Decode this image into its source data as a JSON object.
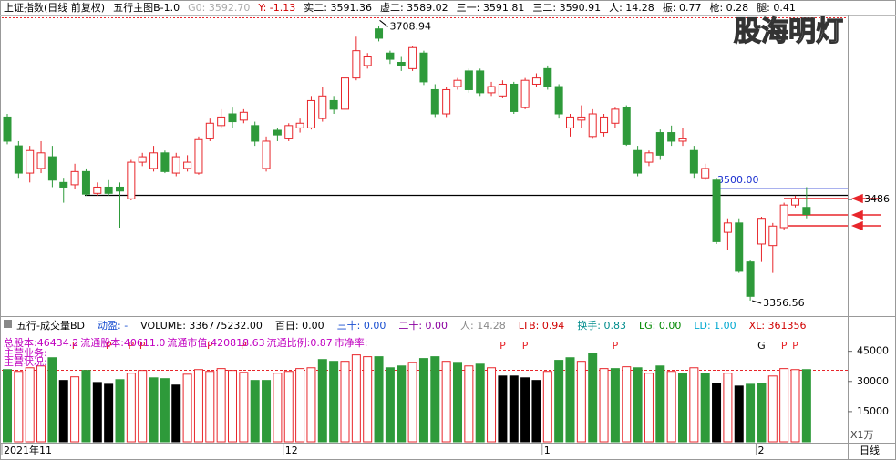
{
  "header": {
    "items": [
      {
        "text": "上证指数(日线 前复权)",
        "color": "#000000"
      },
      {
        "text": "五行主图B-1.0",
        "color": "#000000"
      },
      {
        "text": "G0: 3592.70",
        "color": "#aaaaaa"
      },
      {
        "text": "Y: -1.13",
        "color": "#d00000"
      },
      {
        "text": "实二: 3591.36",
        "color": "#000000"
      },
      {
        "text": "虚二: 3589.02",
        "color": "#000000"
      },
      {
        "text": "三一: 3591.81",
        "color": "#000000"
      },
      {
        "text": "三二: 3590.91",
        "color": "#000000"
      },
      {
        "text": "人: 14.28",
        "color": "#000000"
      },
      {
        "text": "振: 0.77",
        "color": "#000000"
      },
      {
        "text": "枪: 0.28",
        "color": "#000000"
      },
      {
        "text": "腿: 0.41",
        "color": "#000000"
      }
    ],
    "watermark": "股海明灯"
  },
  "volume_header": {
    "items": [
      {
        "text": "五行-成交量BD",
        "color": "#000000"
      },
      {
        "text": "动盈: -",
        "color": "#1a4fd0"
      },
      {
        "text": "VOLUME: 336775232.00",
        "color": "#000000"
      },
      {
        "text": "百日: 0.00",
        "color": "#000000"
      },
      {
        "text": "三十: 0.00",
        "color": "#1a4fd0"
      },
      {
        "text": "二十: 0.00",
        "color": "#8b00a0"
      },
      {
        "text": "人: 14.28",
        "color": "#888888"
      },
      {
        "text": "LTB: 0.94",
        "color": "#d00000"
      },
      {
        "text": "换手: 0.83",
        "color": "#008c8c"
      },
      {
        "text": "LG: 0.00",
        "color": "#008800"
      },
      {
        "text": "LD: 1.00",
        "color": "#00a8d0"
      },
      {
        "text": "XL: 361356",
        "color": "#d00000"
      }
    ],
    "notes": [
      "总股本:46434.2",
      "流通股本:40611.0",
      "流通市值:420818.63",
      "流通比例:0.87",
      "市净率:"
    ],
    "lines": [
      "主营业务:",
      "主营状况:"
    ]
  },
  "chart_data": [
    {
      "type": "candlestick",
      "up_color": "#e8262b",
      "down_color": "#2e9a3a",
      "ylim": [
        3339,
        3721
      ],
      "yticks": [
        3486
      ],
      "hline": {
        "value": 3500,
        "label": "3500.00",
        "color": "#1a2fd0"
      },
      "high_label": 3708.94,
      "low_label": 3356.56,
      "open": [
        3592,
        3555,
        3520,
        3526,
        3541,
        3508,
        3505,
        3522,
        3494,
        3502,
        3502,
        3487,
        3534,
        3526,
        3546,
        3520,
        3526,
        3520,
        3564,
        3581,
        3596,
        3588,
        3581,
        3526,
        3575,
        3564,
        3578,
        3578,
        3590,
        3613,
        3602,
        3642,
        3658,
        3705,
        3674,
        3662,
        3654,
        3674,
        3627,
        3596,
        3631,
        3651,
        3651,
        3623,
        3619,
        3634,
        3604,
        3634,
        3654,
        3631,
        3578,
        3588,
        3567,
        3572,
        3584,
        3604,
        3549,
        3534,
        3572,
        3572,
        3561,
        3549,
        3514,
        3511,
        3444,
        3456,
        3406,
        3429,
        3427,
        3450,
        3479,
        3476
      ],
      "high": [
        3596,
        3561,
        3555,
        3561,
        3555,
        3514,
        3532,
        3526,
        3508,
        3511,
        3508,
        3537,
        3546,
        3555,
        3549,
        3546,
        3543,
        3567,
        3590,
        3602,
        3604,
        3602,
        3586,
        3567,
        3578,
        3584,
        3590,
        3619,
        3631,
        3619,
        3648,
        3695,
        3674,
        3708.94,
        3677,
        3669,
        3683,
        3677,
        3634,
        3631,
        3642,
        3654,
        3654,
        3637,
        3639,
        3637,
        3642,
        3648,
        3658,
        3634,
        3596,
        3607,
        3602,
        3596,
        3604,
        3607,
        3555,
        3549,
        3576,
        3581,
        3578,
        3555,
        3532,
        3514,
        3462,
        3462,
        3409,
        3464,
        3456,
        3482,
        3491,
        3502
      ],
      "low": [
        3557,
        3514,
        3508,
        3520,
        3502,
        3482,
        3499,
        3491,
        3491,
        3491,
        3450,
        3485,
        3529,
        3522,
        3520,
        3516,
        3522,
        3518,
        3561,
        3578,
        3578,
        3584,
        3555,
        3522,
        3561,
        3561,
        3572,
        3576,
        3586,
        3596,
        3599,
        3639,
        3654,
        3689,
        3660,
        3651,
        3651,
        3633,
        3592,
        3592,
        3627,
        3623,
        3619,
        3619,
        3616,
        3596,
        3602,
        3631,
        3627,
        3590,
        3567,
        3578,
        3564,
        3567,
        3578,
        3555,
        3516,
        3529,
        3537,
        3555,
        3555,
        3514,
        3511,
        3429,
        3421,
        3392,
        3356.56,
        3406,
        3392,
        3447,
        3476,
        3462
      ],
      "close": [
        3561,
        3520,
        3549,
        3546,
        3511,
        3502,
        3522,
        3493,
        3502,
        3494,
        3497,
        3534,
        3541,
        3546,
        3522,
        3541,
        3534,
        3563,
        3584,
        3592,
        3586,
        3598,
        3561,
        3561,
        3569,
        3581,
        3584,
        3613,
        3619,
        3602,
        3642,
        3677,
        3669,
        3693,
        3666,
        3658,
        3681,
        3637,
        3596,
        3627,
        3639,
        3627,
        3623,
        3631,
        3634,
        3599,
        3639,
        3642,
        3631,
        3596,
        3592,
        3592,
        3596,
        3592,
        3602,
        3557,
        3520,
        3546,
        3543,
        3561,
        3564,
        3520,
        3526,
        3432,
        3456,
        3394,
        3362,
        3462,
        3452,
        3479,
        3487,
        3467
      ]
    },
    {
      "type": "bar",
      "ylim": [
        0,
        53000
      ],
      "yticks": [
        15000,
        30000,
        45000
      ],
      "unit_label": "X1万",
      "period_label": "日线",
      "hollow_color": "#e8262b",
      "categories": [
        "2021年11",
        null,
        null,
        null,
        null,
        null,
        null,
        null,
        null,
        null,
        null,
        null,
        null,
        null,
        null,
        null,
        null,
        null,
        null,
        null,
        null,
        null,
        null,
        null,
        null,
        "12",
        null,
        null,
        null,
        null,
        null,
        null,
        null,
        null,
        null,
        null,
        null,
        null,
        null,
        null,
        null,
        null,
        null,
        null,
        null,
        null,
        null,
        null,
        "1",
        null,
        null,
        null,
        null,
        null,
        null,
        null,
        null,
        null,
        null,
        null,
        null,
        null,
        null,
        null,
        null,
        null,
        null,
        "2",
        null,
        null,
        null,
        null
      ],
      "signals": [
        null,
        null,
        null,
        null,
        null,
        null,
        "P",
        null,
        null,
        "P",
        null,
        "P",
        "P",
        null,
        null,
        null,
        null,
        null,
        "P",
        null,
        null,
        "P",
        null,
        null,
        null,
        null,
        null,
        null,
        null,
        null,
        null,
        null,
        null,
        null,
        null,
        null,
        null,
        null,
        null,
        null,
        null,
        null,
        null,
        null,
        "P",
        null,
        "P",
        null,
        null,
        null,
        null,
        null,
        null,
        null,
        "P",
        null,
        null,
        null,
        null,
        null,
        null,
        null,
        null,
        null,
        null,
        null,
        null,
        "G",
        null,
        "P",
        "P",
        null
      ],
      "values": [
        35900,
        35000,
        36800,
        37700,
        41800,
        30500,
        32300,
        35500,
        29500,
        28600,
        30900,
        34100,
        35500,
        31800,
        31400,
        28200,
        33600,
        35900,
        35000,
        36400,
        35500,
        34500,
        30500,
        30500,
        34100,
        35000,
        36400,
        36800,
        40900,
        40000,
        40000,
        43200,
        42300,
        42300,
        36800,
        37700,
        39500,
        41400,
        42300,
        40000,
        39500,
        37700,
        38600,
        36800,
        32700,
        32700,
        31800,
        30500,
        35000,
        40500,
        41800,
        40000,
        44100,
        36400,
        36400,
        37300,
        36800,
        34100,
        37700,
        35000,
        34100,
        36800,
        34100,
        29100,
        34100,
        27700,
        28600,
        29100,
        32700,
        36400,
        35900,
        35900
      ],
      "colors": [
        "#2e9a3a",
        "#e8262b",
        "#e8262b",
        "#e8262b",
        "#2e9a3a",
        "#000000",
        "#e8262b",
        "#2e9a3a",
        "#000000",
        "#000000",
        "#2e9a3a",
        "#e8262b",
        "#e8262b",
        "#2e9a3a",
        "#2e9a3a",
        "#000000",
        "#e8262b",
        "#e8262b",
        "#e8262b",
        "#e8262b",
        "#e8262b",
        "#e8262b",
        "#2e9a3a",
        "#2e9a3a",
        "#e8262b",
        "#e8262b",
        "#e8262b",
        "#e8262b",
        "#2e9a3a",
        "#2e9a3a",
        "#e8262b",
        "#e8262b",
        "#e8262b",
        "#2e9a3a",
        "#2e9a3a",
        "#2e9a3a",
        "#e8262b",
        "#2e9a3a",
        "#2e9a3a",
        "#e8262b",
        "#2e9a3a",
        "#e8262b",
        "#2e9a3a",
        "#e8262b",
        "#000000",
        "#000000",
        "#000000",
        "#000000",
        "#e8262b",
        "#2e9a3a",
        "#2e9a3a",
        "#e8262b",
        "#2e9a3a",
        "#e8262b",
        "#2e9a3a",
        "#e8262b",
        "#2e9a3a",
        "#e8262b",
        "#2e9a3a",
        "#e8262b",
        "#2e9a3a",
        "#e8262b",
        "#2e9a3a",
        "#000000",
        "#e8262b",
        "#000000",
        "#2e9a3a",
        "#2e9a3a",
        "#e8262b",
        "#e8262b",
        "#e8262b",
        "#2e9a3a"
      ]
    }
  ]
}
